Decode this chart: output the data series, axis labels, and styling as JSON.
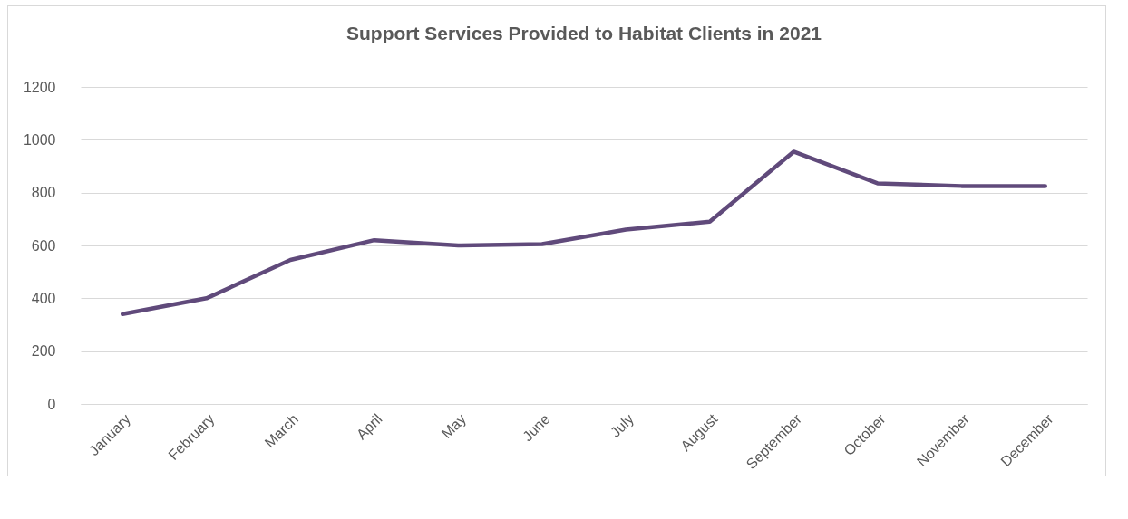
{
  "chart_data": {
    "type": "line",
    "title": "Support Services Provided to Habitat Clients in 2021",
    "categories": [
      "January",
      "February",
      "March",
      "April",
      "May",
      "June",
      "July",
      "August",
      "September",
      "October",
      "November",
      "December"
    ],
    "series": [
      {
        "color": "#604a7b",
        "values": [
          340,
          400,
          545,
          620,
          600,
          605,
          660,
          690,
          955,
          835,
          825,
          825
        ]
      }
    ],
    "ylim": [
      0,
      1200
    ],
    "yticks": [
      0,
      200,
      400,
      600,
      800,
      1000,
      1200
    ],
    "grid": "y",
    "legend": false,
    "marker": "none",
    "line_style": "solid"
  }
}
